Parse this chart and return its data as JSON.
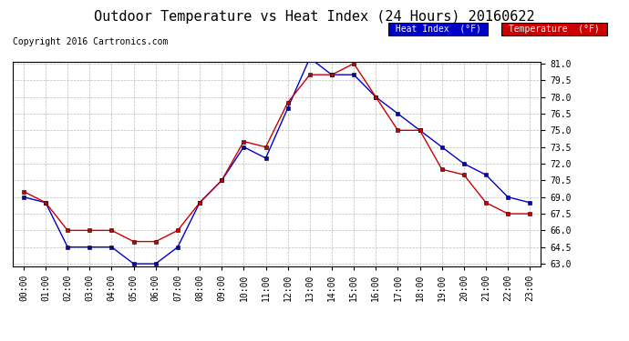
{
  "title": "Outdoor Temperature vs Heat Index (24 Hours) 20160622",
  "copyright": "Copyright 2016 Cartronics.com",
  "hours": [
    "00:00",
    "01:00",
    "02:00",
    "03:00",
    "04:00",
    "05:00",
    "06:00",
    "07:00",
    "08:00",
    "09:00",
    "10:00",
    "11:00",
    "12:00",
    "13:00",
    "14:00",
    "15:00",
    "16:00",
    "17:00",
    "18:00",
    "19:00",
    "20:00",
    "21:00",
    "22:00",
    "23:00"
  ],
  "heat_index": [
    69.0,
    68.5,
    64.5,
    64.5,
    64.5,
    63.0,
    63.0,
    64.5,
    68.5,
    70.5,
    73.5,
    72.5,
    77.0,
    81.5,
    80.0,
    80.0,
    78.0,
    76.5,
    75.0,
    73.5,
    72.0,
    71.0,
    69.0,
    68.5
  ],
  "temperature": [
    69.5,
    68.5,
    66.0,
    66.0,
    66.0,
    65.0,
    65.0,
    66.0,
    68.5,
    70.5,
    74.0,
    73.5,
    77.5,
    80.0,
    80.0,
    81.0,
    78.0,
    75.0,
    75.0,
    71.5,
    71.0,
    68.5,
    67.5,
    67.5
  ],
  "heat_index_color": "#0000cc",
  "temperature_color": "#cc0000",
  "ylim_min": 63.0,
  "ylim_max": 81.0,
  "yticks": [
    63.0,
    64.5,
    66.0,
    67.5,
    69.0,
    70.5,
    72.0,
    73.5,
    75.0,
    76.5,
    78.0,
    79.5,
    81.0
  ],
  "background_color": "#ffffff",
  "grid_color": "#aaaaaa",
  "title_fontsize": 11,
  "copyright_fontsize": 7,
  "tick_fontsize": 7,
  "legend_heat_index_label": "Heat Index  (°F)",
  "legend_temperature_label": "Temperature  (°F)"
}
